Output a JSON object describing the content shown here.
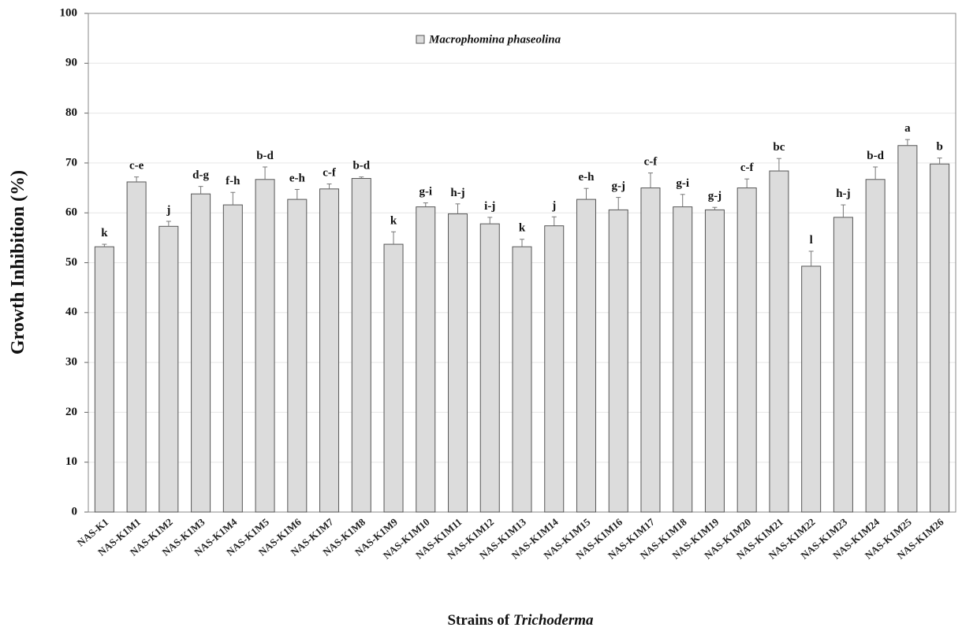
{
  "chart_data": {
    "type": "bar",
    "ylabel": "Growth Inhibition (%)",
    "xlabel": "Strains of",
    "xlabel_italic": "Trichoderma",
    "categories": [
      "NAS-K1",
      "NAS-K1M1",
      "NAS-K1M2",
      "NAS-K1M3",
      "NAS-K1M4",
      "NAS-K1M5",
      "NAS-K1M6",
      "NAS-K1M7",
      "NAS-K1M8",
      "NAS-K1M9",
      "NAS-K1M10",
      "NAS-K1M11",
      "NAS-K1M12",
      "NAS-K1M13",
      "NAS-K1M14",
      "NAS-K1M15",
      "NAS-K1M16",
      "NAS-K1M17",
      "NAS-K1M18",
      "NAS-K1M19",
      "NAS-K1M20",
      "NAS-K1M21",
      "NAS-K1M22",
      "NAS-K1M23",
      "NAS-K1M24",
      "NAS-K1M25",
      "NAS-K1M26"
    ],
    "series": [
      {
        "name": "Macrophomina phaseolina",
        "color": "#dcdcdc",
        "values": [
          53.2,
          66.2,
          57.3,
          63.8,
          61.6,
          66.7,
          62.7,
          64.8,
          66.9,
          53.7,
          61.2,
          59.8,
          57.8,
          53.2,
          57.4,
          62.7,
          60.6,
          65.0,
          61.2,
          60.6,
          65.0,
          68.4,
          49.3,
          59.1,
          66.7,
          73.5,
          69.8
        ],
        "errors": [
          0.5,
          1,
          1,
          1.5,
          2.5,
          2.5,
          2,
          1,
          0.3,
          2.5,
          0.8,
          2,
          1.3,
          1.5,
          1.8,
          2.2,
          2.5,
          3,
          2.5,
          0.5,
          1.8,
          2.5,
          3,
          2.5,
          2.5,
          1.2,
          1.2
        ],
        "letters": [
          "k",
          "c-e",
          "j",
          "d-g",
          "f-h",
          "b-d",
          "e-h",
          "c-f",
          "b-d",
          "k",
          "g-i",
          "h-j",
          "i-j",
          "k",
          "j",
          "e-h",
          "g-j",
          "c-f",
          "g-i",
          "g-j",
          "c-f",
          "bc",
          "l",
          "h-j",
          "b-d",
          "a",
          "b"
        ]
      }
    ],
    "ylim": [
      0,
      100
    ],
    "yticks": [
      0,
      10,
      20,
      30,
      40,
      50,
      60,
      70,
      80,
      90,
      100
    ],
    "grid": true
  }
}
